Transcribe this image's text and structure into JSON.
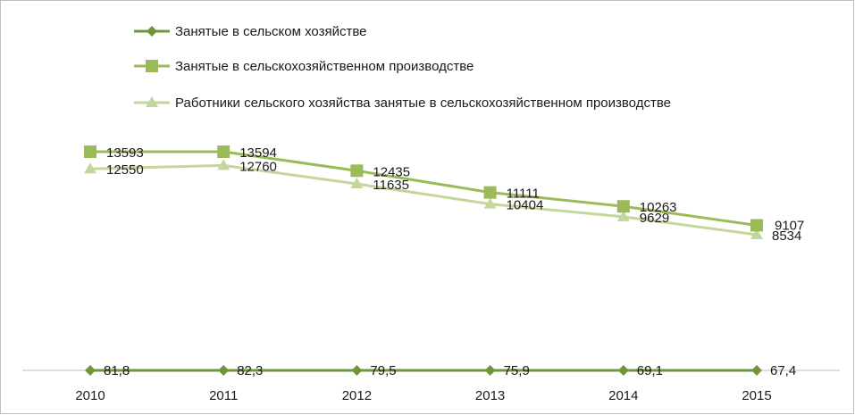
{
  "chart_data": {
    "type": "line",
    "title": "",
    "xlabel": "",
    "ylabel": "",
    "categories": [
      "2010",
      "2011",
      "2012",
      "2013",
      "2014",
      "2015"
    ],
    "grid": false,
    "legend_position": "top",
    "series": [
      {
        "name": "Занятые в сельском хозяйстве",
        "marker": "diamond",
        "color": "#6f963a",
        "values": [
          81.8,
          82.3,
          79.5,
          75.9,
          69.1,
          67.4
        ],
        "labels": [
          "81,8",
          "82,3",
          "79,5",
          "75,9",
          "69,1",
          "67,4"
        ]
      },
      {
        "name": "Занятые в сельскохозяйственном производстве",
        "marker": "square",
        "color": "#9bbb59",
        "values": [
          13593,
          13594,
          12435,
          11111,
          10263,
          9107
        ],
        "labels": [
          "13593",
          "13594",
          "12435",
          "11111",
          "10263",
          "9107"
        ]
      },
      {
        "name": "Работники сельского хозяйства занятые в сельскохозяйственном производстве",
        "marker": "triangle",
        "color": "#c3d69b",
        "values": [
          12550,
          12760,
          11635,
          10404,
          9629,
          8534
        ],
        "labels": [
          "12550",
          "12760",
          "11635",
          "10404",
          "9629",
          "8534"
        ]
      }
    ]
  }
}
